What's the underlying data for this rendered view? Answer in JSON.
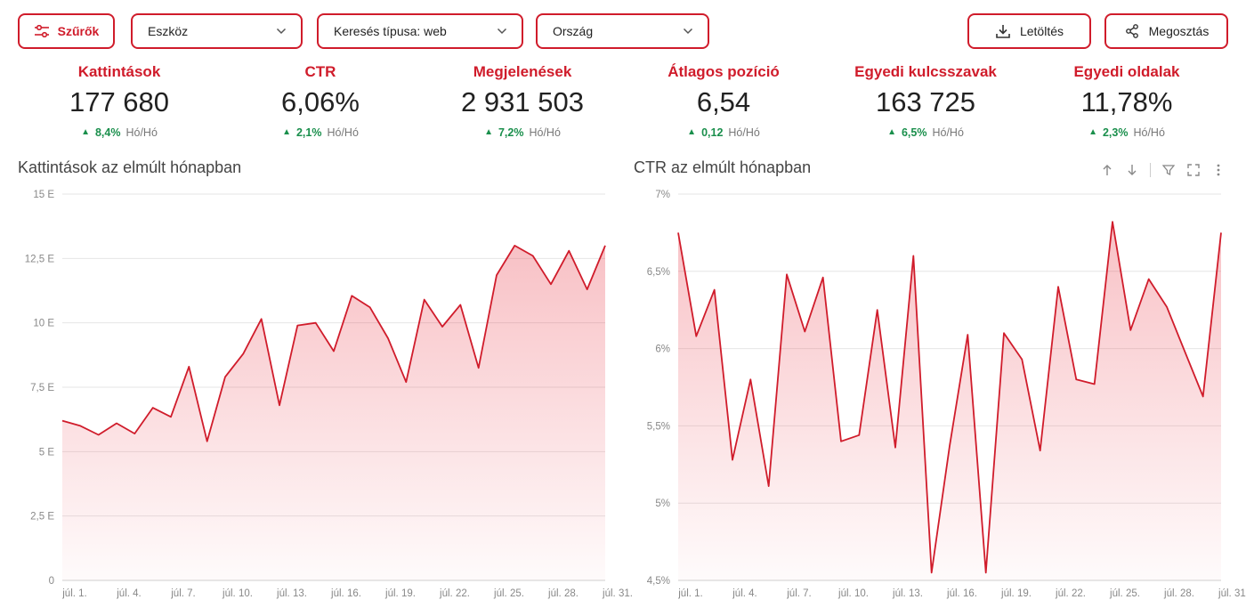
{
  "toolbar": {
    "filter_label": "Szűrők",
    "device": {
      "value": "Eszköz"
    },
    "search_type": {
      "value": "Keresés típusa: web"
    },
    "country": {
      "value": "Ország"
    },
    "download_label": "Letöltés",
    "share_label": "Megosztás"
  },
  "kpis": [
    {
      "label": "Kattintások",
      "value": "177 680",
      "delta": "8,4%",
      "period": "Hó/Hó"
    },
    {
      "label": "CTR",
      "value": "6,06%",
      "delta": "2,1%",
      "period": "Hó/Hó"
    },
    {
      "label": "Megjelenések",
      "value": "2 931 503",
      "delta": "7,2%",
      "period": "Hó/Hó"
    },
    {
      "label": "Átlagos pozíció",
      "value": "6,54",
      "delta": "0,12",
      "period": "Hó/Hó"
    },
    {
      "label": "Egyedi kulcsszavak",
      "value": "163 725",
      "delta": "6,5%",
      "period": "Hó/Hó"
    },
    {
      "label": "Egyedi oldalak",
      "value": "11,78%",
      "delta": "2,3%",
      "period": "Hó/Hó"
    }
  ],
  "colors": {
    "accent": "#d01c2b",
    "positive": "#1a8f4c",
    "grid": "#e6e6e6",
    "tick": "#888888"
  },
  "icons": {
    "filter": "sliders-icon",
    "chevron": "chevron-down-icon",
    "download": "download-icon",
    "share": "share-icon",
    "arrow_up": "arrow-up-icon",
    "arrow_down": "arrow-down-icon",
    "filter_funnel": "funnel-icon",
    "fullscreen": "fullscreen-icon",
    "more": "more-vertical-icon"
  },
  "chart_data": [
    {
      "type": "area",
      "title": "Kattintások az elmúlt hónapban",
      "x": [
        "júl. 1.",
        "júl. 2.",
        "júl. 3.",
        "júl. 4.",
        "júl. 5.",
        "júl. 6.",
        "júl. 7.",
        "júl. 8.",
        "júl. 9.",
        "júl. 10.",
        "júl. 11.",
        "júl. 12.",
        "júl. 13.",
        "júl. 14.",
        "júl. 15.",
        "júl. 16.",
        "júl. 17.",
        "júl. 18.",
        "júl. 19.",
        "júl. 20.",
        "júl. 21.",
        "júl. 22.",
        "júl. 23.",
        "júl. 24.",
        "júl. 25.",
        "júl. 26.",
        "júl. 27.",
        "júl. 28.",
        "júl. 29.",
        "júl. 30.",
        "júl. 31."
      ],
      "x_tick_labels": [
        "júl. 1.",
        "júl. 4.",
        "júl. 7.",
        "júl. 10.",
        "júl. 13.",
        "júl. 16.",
        "júl. 19.",
        "júl. 22.",
        "júl. 25.",
        "júl. 28.",
        "júl. 31."
      ],
      "values": [
        6200,
        6000,
        5650,
        6100,
        5700,
        6700,
        6350,
        8300,
        5400,
        7900,
        8800,
        10150,
        6800,
        9900,
        10000,
        8900,
        11050,
        10600,
        9400,
        7700,
        10900,
        9850,
        10700,
        8250,
        11850,
        13000,
        12600,
        11500,
        12800,
        11300,
        13000
      ],
      "y_tick_labels": [
        "0",
        "2,5 E",
        "5 E",
        "7,5 E",
        "10 E",
        "12,5 E",
        "15 E"
      ],
      "ylim": [
        0,
        15000
      ],
      "xlabel": "",
      "ylabel": "",
      "grid": true
    },
    {
      "type": "area",
      "title": "CTR az elmúlt hónapban",
      "x": [
        "júl. 1.",
        "júl. 2.",
        "júl. 3.",
        "júl. 4.",
        "júl. 5.",
        "júl. 6.",
        "júl. 7.",
        "júl. 8.",
        "júl. 9.",
        "júl. 10.",
        "júl. 11.",
        "júl. 12.",
        "júl. 13.",
        "júl. 14.",
        "júl. 15.",
        "júl. 16.",
        "júl. 17.",
        "júl. 18.",
        "júl. 19.",
        "júl. 20.",
        "júl. 21.",
        "júl. 22.",
        "júl. 23.",
        "júl. 24.",
        "júl. 25.",
        "júl. 26.",
        "júl. 27.",
        "júl. 28.",
        "júl. 29.",
        "júl. 30.",
        "júl. 31."
      ],
      "x_tick_labels": [
        "júl. 1.",
        "júl. 4.",
        "júl. 7.",
        "júl. 10.",
        "júl. 13.",
        "júl. 16.",
        "júl. 19.",
        "júl. 22.",
        "júl. 25.",
        "júl. 28.",
        "júl. 31."
      ],
      "values": [
        6.75,
        6.08,
        6.38,
        5.28,
        5.8,
        5.11,
        6.48,
        6.11,
        6.46,
        5.4,
        5.44,
        6.25,
        5.36,
        6.6,
        4.55,
        5.37,
        6.09,
        4.55,
        6.1,
        5.93,
        5.34,
        6.4,
        5.8,
        5.77,
        6.82,
        6.12,
        6.45,
        6.27,
        5.98,
        5.69,
        6.75
      ],
      "y_tick_labels": [
        "4,5%",
        "5%",
        "5,5%",
        "6%",
        "6,5%",
        "7%"
      ],
      "ylim": [
        4.5,
        7.0
      ],
      "xlabel": "",
      "ylabel": "",
      "grid": true
    }
  ]
}
